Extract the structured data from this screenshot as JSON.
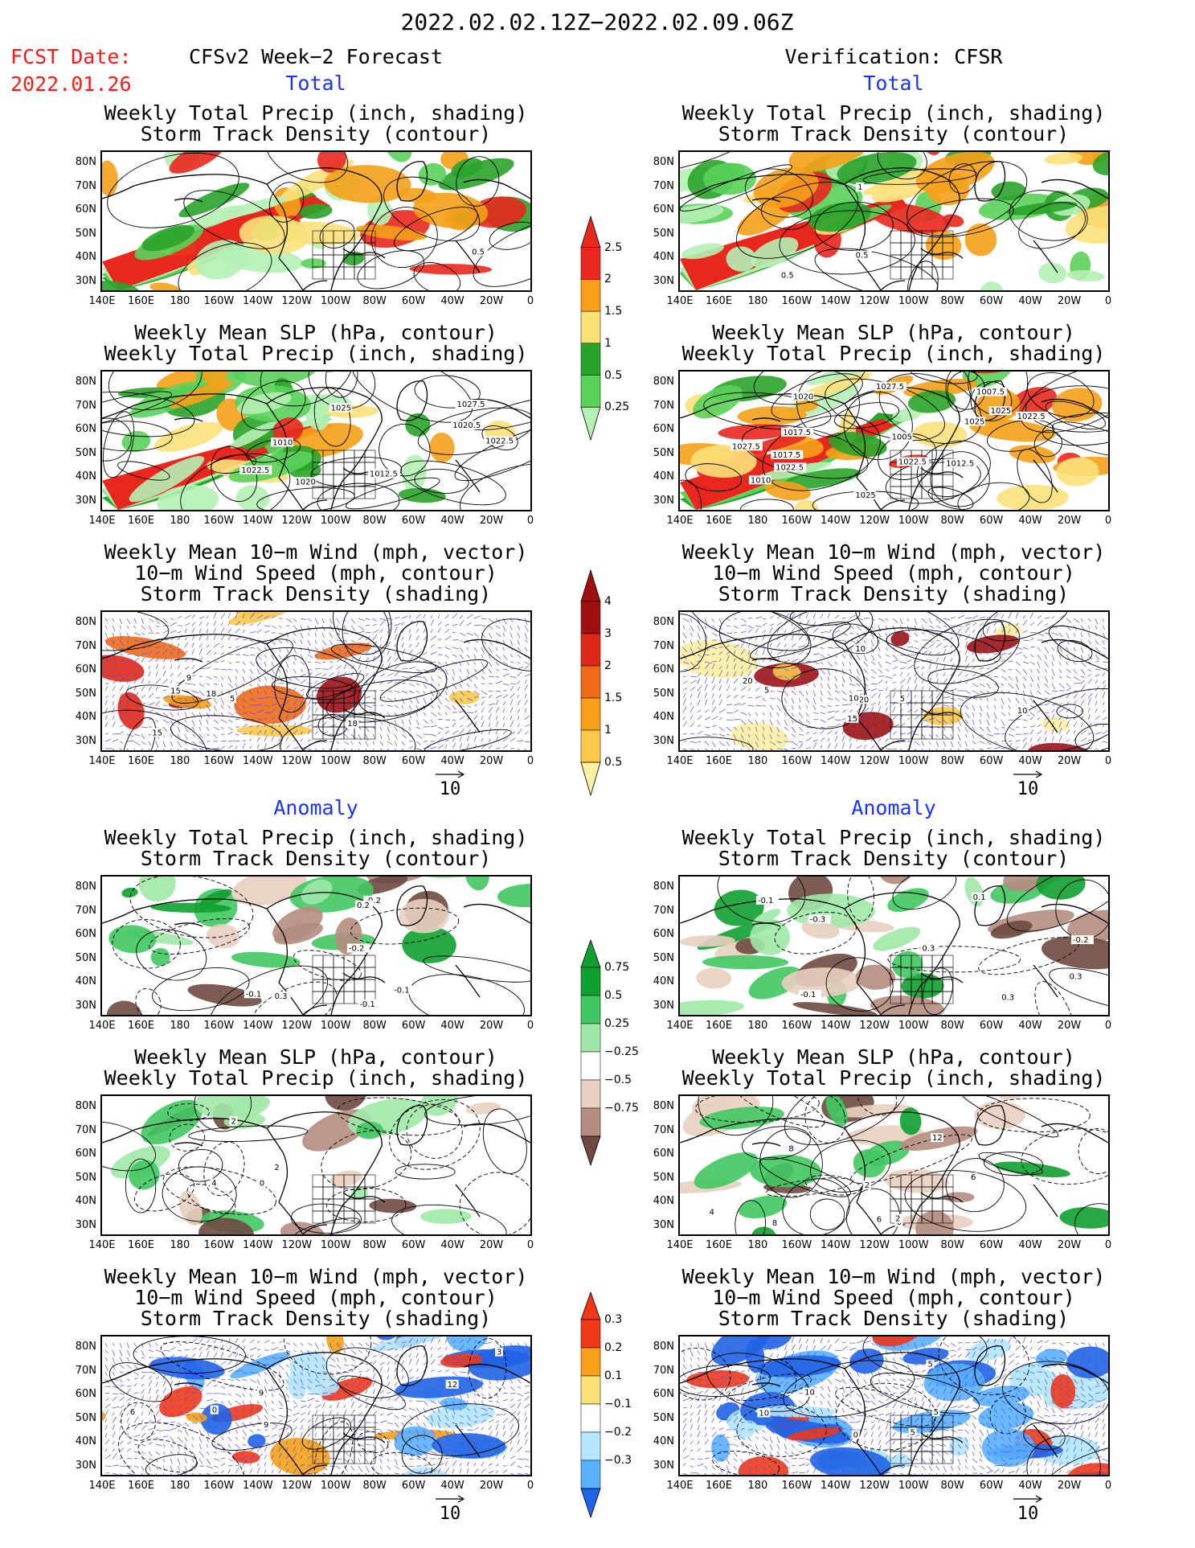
{
  "header": {
    "period": "2022.02.02.12Z−2022.02.09.06Z",
    "fcst_label": "FCST Date:",
    "fcst_date": "2022.01.26",
    "left_model": "CFSv2 Week−2 Forecast",
    "right_model": "Verification: CFSR"
  },
  "sections": {
    "total": "Total",
    "anomaly": "Anomaly"
  },
  "titles": {
    "precip_storm": [
      "Weekly Total Precip (inch, shading)",
      "Storm Track Density (contour)"
    ],
    "slp_precip": [
      "Weekly Mean SLP (hPa, contour)",
      "Weekly Total Precip (inch, shading)"
    ],
    "wind_storm": [
      "Weekly Mean 10−m Wind (mph, vector)",
      "10−m Wind Speed (mph, contour)",
      "Storm Track Density (shading)"
    ]
  },
  "axes": {
    "lat_labels": [
      "80N",
      "70N",
      "60N",
      "50N",
      "40N",
      "30N"
    ],
    "lon_labels": [
      "140E",
      "160E",
      "180",
      "160W",
      "140W",
      "120W",
      "100W",
      "80W",
      "60W",
      "40W",
      "20W",
      "0"
    ]
  },
  "vector_ref": "10",
  "colorbars": {
    "total_precip": {
      "labels": [
        "2.5",
        "2",
        "1.5",
        "1",
        "0.5",
        "0.25"
      ],
      "colors": [
        "#e8281e",
        "#f5a018",
        "#fbe07a",
        "#2aa32a",
        "#5ad25a",
        "#b4f0b4"
      ]
    },
    "storm_density": {
      "labels": [
        "4",
        "3",
        "2",
        "1.5",
        "1",
        "0.5"
      ],
      "colors": [
        "#a01010",
        "#e02818",
        "#f06a18",
        "#f5a018",
        "#fbc84a",
        "#fdf0a0"
      ]
    },
    "anom_precip": {
      "labels": [
        "0.75",
        "0.5",
        "0.25",
        "−0.25",
        "−0.5",
        "−0.75"
      ],
      "colors": [
        "#10a030",
        "#40c860",
        "#a0e8a8",
        "#ffffff",
        "#e8cfc0",
        "#b48c80",
        "#6e4a40"
      ]
    },
    "anom_storm": {
      "labels": [
        "0.3",
        "0.2",
        "0.1",
        "−0.1",
        "−0.2",
        "−0.3"
      ],
      "colors": [
        "#f03818",
        "#f5a018",
        "#fbe07a",
        "#ffffff",
        "#b4e6ff",
        "#5ab0ff",
        "#1e64e6"
      ]
    }
  },
  "contour_labels": {
    "t1L": [
      "0.5"
    ],
    "t1R": [
      "0.5",
      "1",
      "0.5"
    ],
    "t2L": [
      "1022.5",
      "1025",
      "1020",
      "1012.5",
      "1022.5",
      "1020.5",
      "1027.5",
      "1010"
    ],
    "t2R": [
      "1010",
      "1007.5",
      "1020",
      "1025",
      "1022.5",
      "1017.5",
      "1017.5",
      "1022.5",
      "1022.5",
      "1025",
      "1027.5",
      "1027.5",
      "1012.5",
      "1005",
      "1025"
    ],
    "t3L": [
      "3",
      "5",
      "18",
      "15",
      "9",
      "18",
      "15"
    ],
    "t3R": [
      "5",
      "20",
      "10",
      "5",
      "10",
      "15",
      "20",
      "10"
    ],
    "a1L": [
      "-0.1",
      "-0.2",
      "-0.1",
      "-0.2",
      "0.2",
      "-0.1",
      "0.3"
    ],
    "a1R": [
      "0.3",
      "-0.1",
      "0.3",
      "-0.2",
      "-0.1",
      "0.1",
      "-0.3",
      "0.3"
    ],
    "a2L": [
      "0",
      "2",
      "4",
      "2"
    ],
    "a2R": [
      "6",
      "6",
      "4",
      "2",
      "6",
      "8",
      "12",
      "8",
      "2"
    ],
    "a3L": [
      "3",
      "6",
      "9",
      "12",
      "9",
      "0"
    ],
    "a3R": [
      "5",
      "10",
      "5",
      "10",
      "5",
      "0"
    ]
  }
}
